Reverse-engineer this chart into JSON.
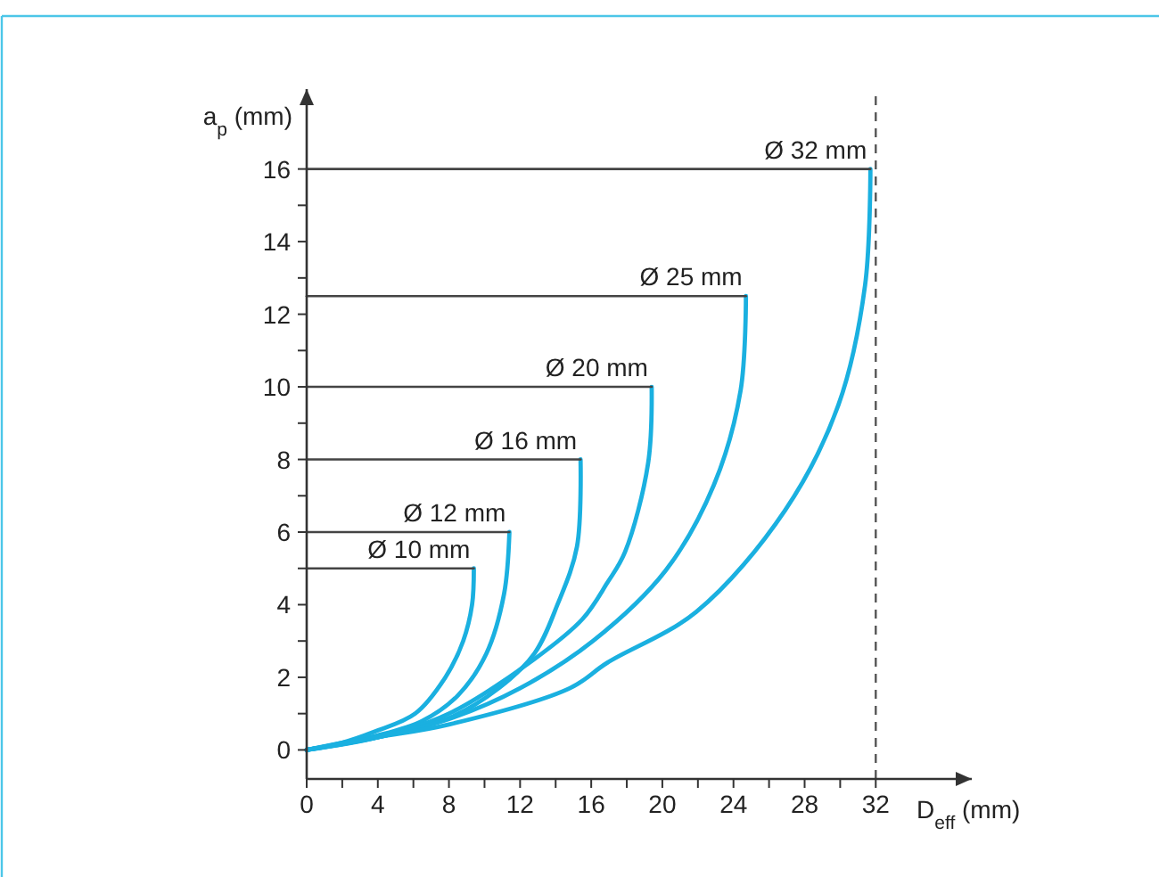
{
  "chart_data": {
    "type": "line",
    "xlabel": "D$_{eff}$ (mm)",
    "ylabel": "a$_{p}$ (mm)",
    "xlim": [
      0,
      37.4
    ],
    "ylim": [
      -0.8,
      18.2
    ],
    "xticks": [
      0,
      {
        "value": 2,
        "label": null
      },
      4,
      {
        "value": 6,
        "label": null
      },
      8,
      {
        "value": 10,
        "label": null
      },
      12,
      {
        "value": 14,
        "label": null
      },
      16,
      {
        "value": 18,
        "label": null
      },
      20,
      {
        "value": 22,
        "label": null
      },
      24,
      {
        "value": 26,
        "label": null
      },
      28,
      {
        "value": 30,
        "label": null
      },
      32
    ],
    "yticks": [
      0,
      {
        "value": 1,
        "label": null
      },
      2,
      {
        "value": 3,
        "label": null
      },
      4,
      {
        "value": 5,
        "label": null
      },
      6,
      {
        "value": 7,
        "label": null
      },
      8,
      {
        "value": 9,
        "label": null
      },
      10,
      {
        "value": 11,
        "label": null
      },
      12,
      {
        "value": 13,
        "label": null
      },
      14,
      {
        "value": 15,
        "label": null
      },
      16
    ],
    "grid": false,
    "marker": "none",
    "line_style": "solid",
    "ref_lines": [
      {
        "axis": "x",
        "value": 32,
        "color": "#555555",
        "line_style": "dashed"
      }
    ],
    "series": [
      {
        "name": "Ø 10 mm",
        "color": "#1ab0e0",
        "x": [
          0,
          2,
          3.8,
          6.1,
          7.8,
          8.8,
          9.3,
          9.4
        ],
        "values": [
          0,
          0.2,
          0.5,
          1,
          2,
          3,
          4,
          5
        ]
      },
      {
        "name": "Ø 12 mm",
        "color": "#1ab0e0",
        "x": [
          0,
          2,
          4,
          6.5,
          8.5,
          10.1,
          11.1,
          11.4
        ],
        "values": [
          0,
          0.2,
          0.4,
          0.8,
          1.5,
          2.65,
          4.3,
          6
        ]
      },
      {
        "name": "Ø 16 mm",
        "color": "#1ab0e0",
        "x": [
          0,
          4,
          8.1,
          10.8,
          12.8,
          14.1,
          15.2,
          15.4
        ],
        "values": [
          0,
          0.35,
          0.9,
          1.7,
          2.65,
          4,
          5.6,
          8
        ]
      },
      {
        "name": "Ø 20 mm",
        "color": "#1ab0e0",
        "x": [
          0,
          4,
          8,
          12.8,
          15.5,
          16.9,
          17.9,
          19.2,
          19.4
        ],
        "values": [
          0,
          0.35,
          1,
          2.5,
          3.6,
          4.6,
          5.45,
          7.9,
          10
        ]
      },
      {
        "name": "Ø 25 mm",
        "color": "#1ab0e0",
        "x": [
          0,
          4,
          8,
          12,
          16.1,
          20.2,
          22.9,
          24.4,
          24.7
        ],
        "values": [
          0,
          0.35,
          0.85,
          1.7,
          3,
          4.95,
          7.3,
          9.9,
          12.5
        ]
      },
      {
        "name": "Ø 32 mm",
        "color": "#1ab0e0",
        "x": [
          0,
          4,
          8,
          14.8,
          16.9,
          21.9,
          26.9,
          29.9,
          31.4,
          31.7
        ],
        "values": [
          0,
          0.35,
          0.7,
          1.7,
          2.4,
          3.8,
          6.6,
          9.5,
          12.8,
          16
        ]
      },
      {
        "color": "#444444",
        "x": [
          0,
          9.4
        ],
        "values": [
          5,
          5
        ]
      },
      {
        "color": "#444444",
        "x": [
          0,
          11.4
        ],
        "values": [
          6,
          6
        ]
      },
      {
        "color": "#444444",
        "x": [
          0,
          15.4
        ],
        "values": [
          8,
          8
        ]
      },
      {
        "color": "#444444",
        "x": [
          0,
          19.4
        ],
        "values": [
          10,
          10
        ]
      },
      {
        "color": "#444444",
        "x": [
          0,
          24.7
        ],
        "values": [
          12.5,
          12.5
        ]
      },
      {
        "color": "#444444",
        "x": [
          0,
          31.7
        ],
        "values": [
          16,
          16
        ]
      }
    ]
  }
}
